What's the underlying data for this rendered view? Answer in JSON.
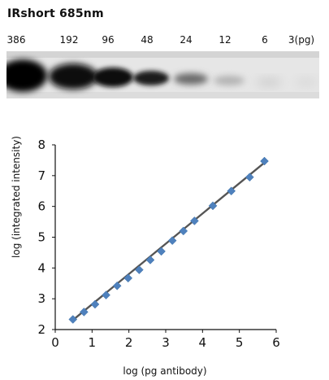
{
  "header": {
    "title": "IRshort  685nm"
  },
  "blot": {
    "lane_labels": [
      "386",
      "192",
      "96",
      "48",
      "24",
      "12",
      "6",
      "3(pg)"
    ]
  },
  "chart_data": {
    "type": "scatter",
    "title": "",
    "xlabel": "log (pg antibody)",
    "ylabel": "log (integrated intensity)",
    "xlim": [
      0,
      6
    ],
    "ylim": [
      2,
      8
    ],
    "xticks": [
      0,
      1,
      2,
      3,
      4,
      5,
      6
    ],
    "yticks": [
      2,
      3,
      4,
      5,
      6,
      7,
      8
    ],
    "grid": false,
    "legend": "none",
    "series": [
      {
        "marker_color": "#4f81bd",
        "x": [
          0.48,
          0.78,
          1.08,
          1.38,
          1.68,
          1.98,
          2.28,
          2.58,
          2.88,
          3.18,
          3.48,
          3.78,
          4.28,
          4.78,
          5.28,
          5.68
        ],
        "y": [
          2.33,
          2.57,
          2.82,
          3.12,
          3.42,
          3.67,
          3.94,
          4.26,
          4.54,
          4.89,
          5.2,
          5.53,
          6.02,
          6.5,
          6.95,
          7.47
        ]
      }
    ],
    "trendline": {
      "x": [
        0.45,
        5.7
      ],
      "y": [
        2.28,
        7.44
      ],
      "color": "#555555"
    }
  }
}
